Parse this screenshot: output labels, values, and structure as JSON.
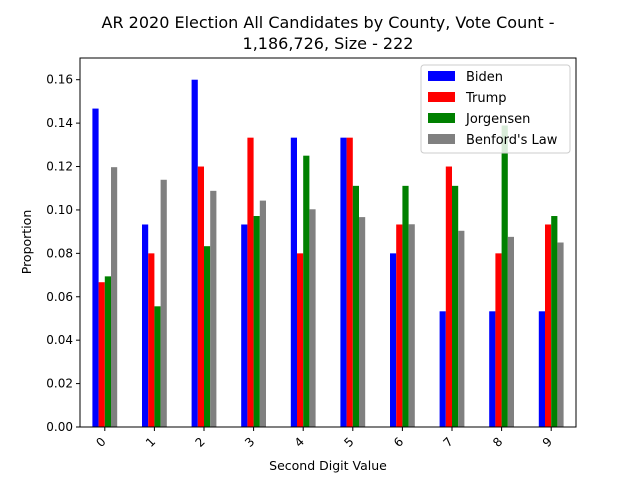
{
  "chart_data": {
    "type": "bar",
    "title_lines": [
      "AR 2020 Election All Candidates by County, Vote Count -",
      "1,186,726, Size - 222"
    ],
    "xlabel": "Second Digit Value",
    "ylabel": "Proportion",
    "categories": [
      "0",
      "1",
      "2",
      "3",
      "4",
      "5",
      "6",
      "7",
      "8",
      "9"
    ],
    "ylim": [
      0,
      0.17
    ],
    "yticks": [
      "0.00",
      "0.02",
      "0.04",
      "0.06",
      "0.08",
      "0.10",
      "0.12",
      "0.14",
      "0.16"
    ],
    "ytick_values": [
      0,
      0.02,
      0.04,
      0.06,
      0.08,
      0.1,
      0.12,
      0.14,
      0.16
    ],
    "legend_position": "top-right",
    "grid": false,
    "series": [
      {
        "name": "Biden",
        "color": "#0000ff",
        "values": [
          0.1467,
          0.0933,
          0.16,
          0.0933,
          0.1333,
          0.1333,
          0.08,
          0.0533,
          0.0533,
          0.0533
        ]
      },
      {
        "name": "Trump",
        "color": "#ff0000",
        "values": [
          0.0667,
          0.08,
          0.12,
          0.1333,
          0.08,
          0.1333,
          0.0933,
          0.12,
          0.08,
          0.0933
        ]
      },
      {
        "name": "Jorgensen",
        "color": "#008000",
        "values": [
          0.0694,
          0.0556,
          0.0833,
          0.0972,
          0.125,
          0.1111,
          0.1111,
          0.1111,
          0.1389,
          0.0972
        ]
      },
      {
        "name": "Benford's Law",
        "color": "#808080",
        "values": [
          0.1197,
          0.1139,
          0.1088,
          0.1043,
          0.1003,
          0.0967,
          0.0934,
          0.0904,
          0.0876,
          0.085
        ]
      }
    ]
  }
}
